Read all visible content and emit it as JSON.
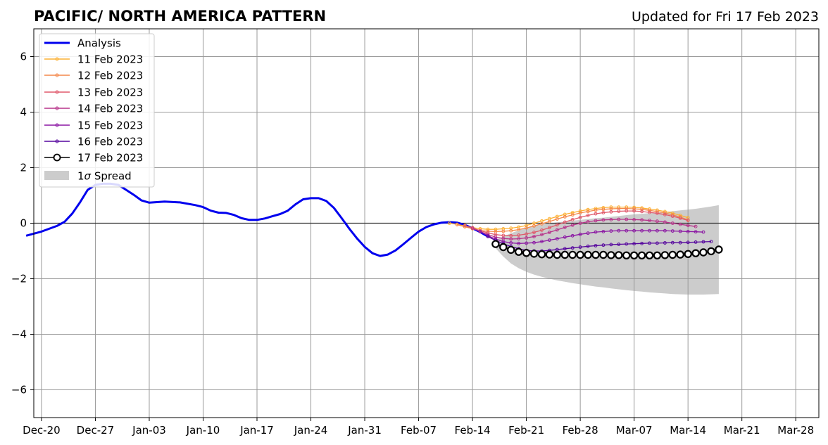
{
  "chart_data": {
    "type": "line",
    "title": "PACIFIC/ NORTH AMERICA PATTERN",
    "subtitle": "Updated for Fri 17 Feb 2023",
    "xlabel": "",
    "ylabel": "",
    "ylim": [
      -7,
      7
    ],
    "y_ticks": [
      {
        "value": 6,
        "label": "6"
      },
      {
        "value": 4,
        "label": "4"
      },
      {
        "value": 2,
        "label": "2"
      },
      {
        "value": 0,
        "label": "0"
      },
      {
        "value": -2,
        "label": "−2"
      },
      {
        "value": -4,
        "label": "−4"
      },
      {
        "value": -6,
        "label": "−6"
      }
    ],
    "x_ticks": [
      "Dec-20",
      "Dec-27",
      "Jan-03",
      "Jan-10",
      "Jan-17",
      "Jan-24",
      "Jan-31",
      "Feb-07",
      "Feb-14",
      "Feb-21",
      "Feb-28",
      "Mar-07",
      "Mar-14",
      "Mar-21",
      "Mar-28"
    ],
    "x_start": "2022-12-19",
    "x_end": "2023-03-31",
    "grid": true,
    "legend_position": "top-left",
    "legend": {
      "analysis": "Analysis",
      "f11": "11 Feb 2023",
      "f12": "12 Feb 2023",
      "f13": "13 Feb 2023",
      "f14": "14 Feb 2023",
      "f15": "15 Feb 2023",
      "f16": "16 Feb 2023",
      "f17": "17 Feb 2023",
      "spread_prefix": "1",
      "spread_sigma": "σ",
      "spread_suffix": " Spread"
    },
    "colors": {
      "analysis": "#0000ee",
      "f11": "#fcb033",
      "f12": "#f4874a",
      "f13": "#e0596b",
      "f14": "#b7328a",
      "f15": "#8b16a3",
      "f16": "#54039d",
      "f17": "#000000",
      "spread": "#cccccc"
    },
    "analysis": {
      "x": [
        "2022-12-18",
        "2022-12-20",
        "2022-12-22",
        "2022-12-23",
        "2022-12-24",
        "2022-12-25",
        "2022-12-26",
        "2022-12-27",
        "2022-12-28",
        "2022-12-29",
        "2022-12-30",
        "2022-12-31",
        "2023-01-01",
        "2023-01-02",
        "2023-01-03",
        "2023-01-05",
        "2023-01-07",
        "2023-01-09",
        "2023-01-10",
        "2023-01-11",
        "2023-01-12",
        "2023-01-13",
        "2023-01-14",
        "2023-01-15",
        "2023-01-16",
        "2023-01-17",
        "2023-01-18",
        "2023-01-19",
        "2023-01-20",
        "2023-01-21",
        "2023-01-22",
        "2023-01-23",
        "2023-01-24",
        "2023-01-25",
        "2023-01-26",
        "2023-01-27",
        "2023-01-28",
        "2023-01-29",
        "2023-01-30",
        "2023-01-31",
        "2023-02-01",
        "2023-02-02",
        "2023-02-03",
        "2023-02-04",
        "2023-02-05",
        "2023-02-06",
        "2023-02-07",
        "2023-02-08",
        "2023-02-09",
        "2023-02-10",
        "2023-02-11",
        "2023-02-12",
        "2023-02-13",
        "2023-02-14",
        "2023-02-15",
        "2023-02-16"
      ],
      "y": [
        -0.45,
        -0.3,
        -0.1,
        0.05,
        0.35,
        0.75,
        1.2,
        1.38,
        1.42,
        1.42,
        1.38,
        1.2,
        1.02,
        0.82,
        0.74,
        0.78,
        0.75,
        0.65,
        0.58,
        0.45,
        0.38,
        0.37,
        0.3,
        0.18,
        0.12,
        0.12,
        0.17,
        0.25,
        0.33,
        0.45,
        0.68,
        0.86,
        0.9,
        0.9,
        0.8,
        0.55,
        0.18,
        -0.2,
        -0.55,
        -0.85,
        -1.08,
        -1.18,
        -1.13,
        -0.98,
        -0.76,
        -0.53,
        -0.3,
        -0.14,
        -0.04,
        0.02,
        0.04,
        0.02,
        -0.06,
        -0.18,
        -0.32,
        -0.48
      ]
    },
    "forecasts": [
      {
        "key": "f11",
        "name": "11 Feb 2023",
        "start": "2023-02-11",
        "days": 31,
        "y": [
          0.0,
          -0.04,
          -0.1,
          -0.16,
          -0.2,
          -0.22,
          -0.22,
          -0.2,
          -0.18,
          -0.14,
          -0.08,
          0.0,
          0.08,
          0.16,
          0.24,
          0.32,
          0.38,
          0.44,
          0.49,
          0.53,
          0.56,
          0.58,
          0.58,
          0.58,
          0.57,
          0.55,
          0.51,
          0.47,
          0.42,
          0.36,
          0.28,
          0.2
        ]
      },
      {
        "key": "f12",
        "name": "12 Feb 2023",
        "start": "2023-02-12",
        "days": 30,
        "y": [
          -0.05,
          -0.13,
          -0.2,
          -0.26,
          -0.29,
          -0.3,
          -0.29,
          -0.27,
          -0.23,
          -0.17,
          -0.1,
          -0.02,
          0.06,
          0.15,
          0.23,
          0.3,
          0.37,
          0.42,
          0.47,
          0.5,
          0.52,
          0.53,
          0.53,
          0.52,
          0.5,
          0.46,
          0.42,
          0.37,
          0.3,
          0.22,
          0.12
        ]
      },
      {
        "key": "f13",
        "name": "13 Feb 2023",
        "start": "2023-02-13",
        "days": 29,
        "y": [
          -0.08,
          -0.17,
          -0.27,
          -0.35,
          -0.41,
          -0.44,
          -0.45,
          -0.43,
          -0.39,
          -0.33,
          -0.25,
          -0.16,
          -0.06,
          0.04,
          0.13,
          0.21,
          0.28,
          0.34,
          0.38,
          0.41,
          0.43,
          0.44,
          0.44,
          0.42,
          0.39,
          0.36,
          0.31,
          0.25,
          0.18,
          0.1
        ]
      },
      {
        "key": "f14",
        "name": "14 Feb 2023",
        "start": "2023-02-14",
        "days": 29,
        "y": [
          -0.18,
          -0.3,
          -0.41,
          -0.5,
          -0.55,
          -0.57,
          -0.56,
          -0.53,
          -0.48,
          -0.41,
          -0.33,
          -0.24,
          -0.15,
          -0.07,
          0.0,
          0.05,
          0.09,
          0.12,
          0.13,
          0.14,
          0.14,
          0.13,
          0.12,
          0.1,
          0.07,
          0.04,
          0.0,
          -0.04,
          -0.08,
          -0.12
        ]
      },
      {
        "key": "f15",
        "name": "15 Feb 2023",
        "start": "2023-02-15",
        "days": 29,
        "y": [
          -0.3,
          -0.45,
          -0.57,
          -0.66,
          -0.71,
          -0.73,
          -0.72,
          -0.7,
          -0.66,
          -0.61,
          -0.56,
          -0.5,
          -0.45,
          -0.4,
          -0.36,
          -0.32,
          -0.3,
          -0.28,
          -0.27,
          -0.27,
          -0.27,
          -0.27,
          -0.27,
          -0.27,
          -0.27,
          -0.28,
          -0.29,
          -0.3,
          -0.31,
          -0.32
        ]
      },
      {
        "key": "f16",
        "name": "16 Feb 2023",
        "start": "2023-02-16",
        "days": 29,
        "y": [
          -0.48,
          -0.62,
          -0.74,
          -0.84,
          -0.92,
          -0.98,
          -1.0,
          -1.0,
          -0.98,
          -0.95,
          -0.92,
          -0.89,
          -0.86,
          -0.83,
          -0.81,
          -0.79,
          -0.77,
          -0.76,
          -0.75,
          -0.74,
          -0.73,
          -0.72,
          -0.72,
          -0.71,
          -0.7,
          -0.7,
          -0.69,
          -0.68,
          -0.67,
          -0.66
        ]
      },
      {
        "key": "f17",
        "name": "17 Feb 2023",
        "start": "2023-02-17",
        "days": 29,
        "y": [
          -0.75,
          -0.86,
          -0.96,
          -1.03,
          -1.07,
          -1.1,
          -1.12,
          -1.13,
          -1.14,
          -1.14,
          -1.14,
          -1.14,
          -1.14,
          -1.14,
          -1.14,
          -1.15,
          -1.15,
          -1.16,
          -1.16,
          -1.16,
          -1.16,
          -1.16,
          -1.15,
          -1.14,
          -1.13,
          -1.11,
          -1.08,
          -1.05,
          -1.01,
          -0.95
        ]
      }
    ],
    "spread": {
      "start": "2023-02-17",
      "days": 29,
      "upper": [
        -0.6,
        -0.48,
        -0.36,
        -0.26,
        -0.17,
        -0.1,
        -0.05,
        -0.01,
        0.03,
        0.06,
        0.09,
        0.12,
        0.15,
        0.18,
        0.2,
        0.23,
        0.26,
        0.29,
        0.32,
        0.34,
        0.36,
        0.38,
        0.41,
        0.43,
        0.46,
        0.49,
        0.52,
        0.56,
        0.6,
        0.65
      ],
      "lower": [
        -0.9,
        -1.2,
        -1.45,
        -1.62,
        -1.75,
        -1.85,
        -1.93,
        -2.0,
        -2.06,
        -2.11,
        -2.16,
        -2.2,
        -2.24,
        -2.28,
        -2.31,
        -2.35,
        -2.38,
        -2.41,
        -2.44,
        -2.46,
        -2.49,
        -2.51,
        -2.53,
        -2.55,
        -2.56,
        -2.57,
        -2.57,
        -2.57,
        -2.56,
        -2.55
      ]
    }
  }
}
